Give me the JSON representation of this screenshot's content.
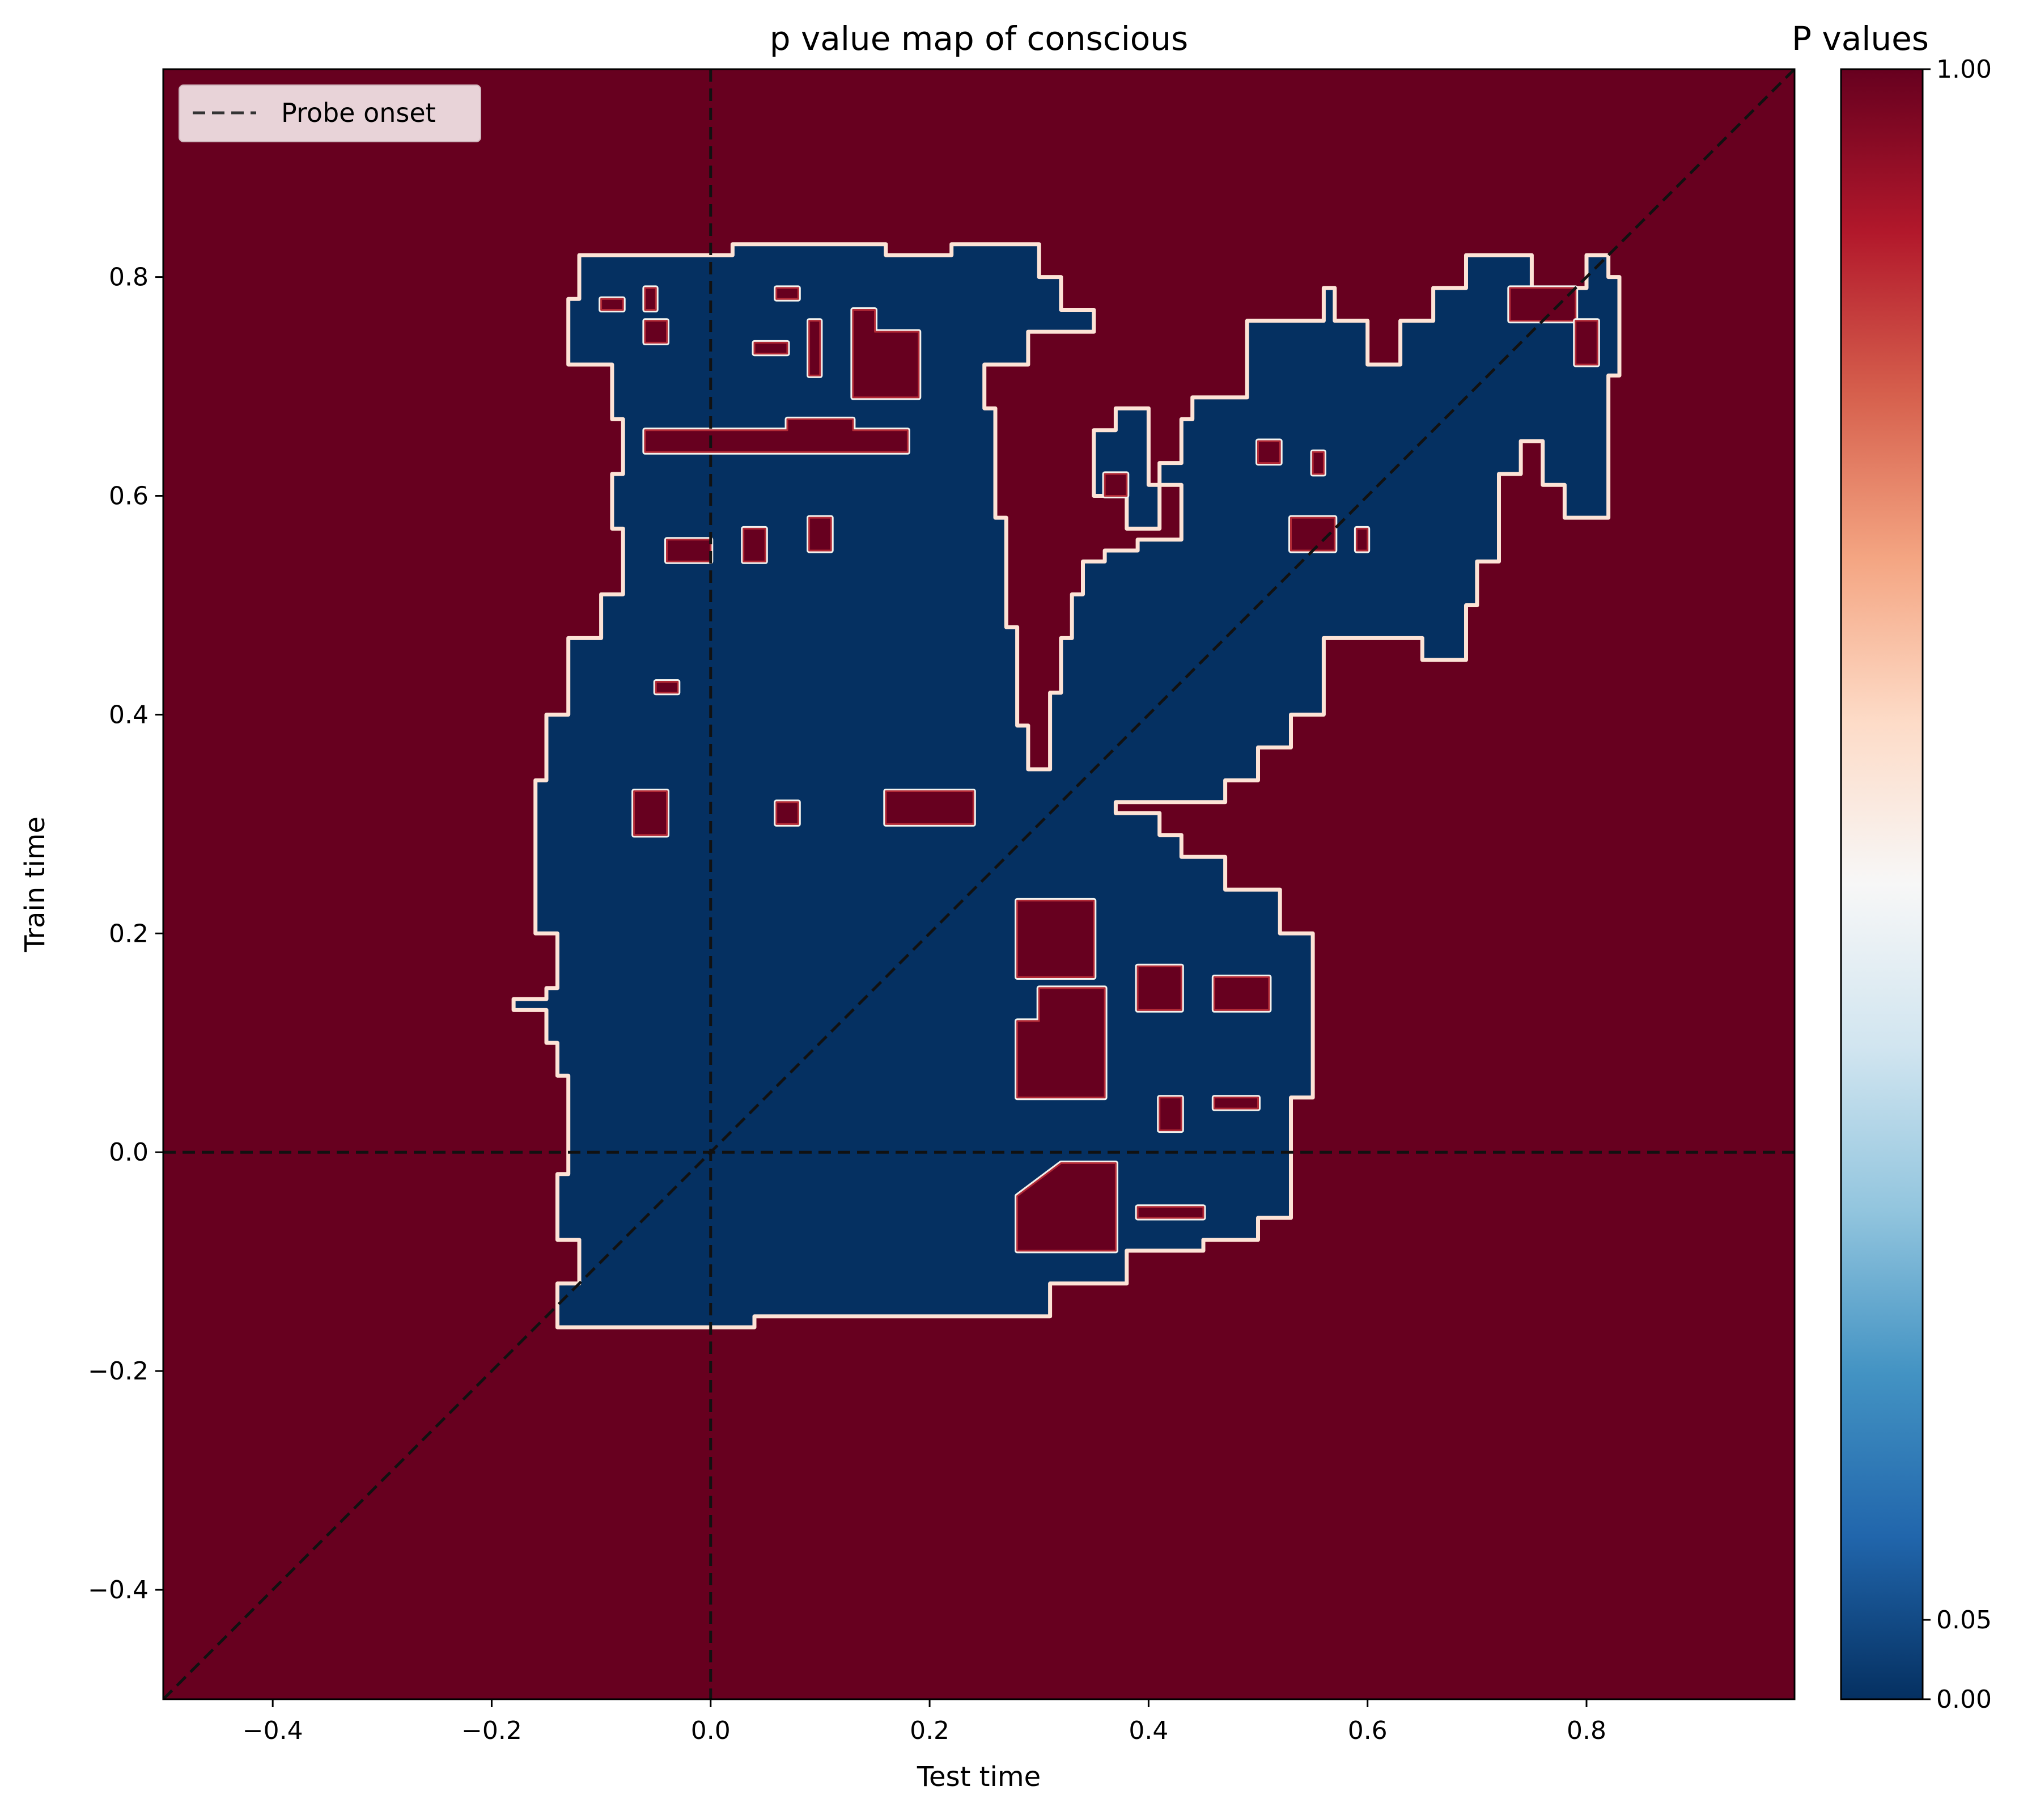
{
  "chart_data": {
    "type": "heatmap",
    "title": "p value map of  conscious",
    "xlabel": "Test time",
    "ylabel": "Train time",
    "xlim": [
      -0.5,
      0.99
    ],
    "ylim": [
      -0.5,
      0.99
    ],
    "xticks": [
      -0.4,
      -0.2,
      0.0,
      0.2,
      0.4,
      0.6,
      0.8
    ],
    "yticks": [
      -0.4,
      -0.2,
      0.0,
      0.2,
      0.4,
      0.6,
      0.8
    ],
    "xtick_labels": [
      "−0.4",
      "−0.2",
      "0.0",
      "0.2",
      "0.4",
      "0.6",
      "0.8"
    ],
    "ytick_labels": [
      "−0.4",
      "−0.2",
      "0.0",
      "0.2",
      "0.4",
      "0.6",
      "0.8"
    ],
    "background_value": 1.0,
    "significant_value": 0.0,
    "significant_region_outline": [
      [
        -0.14,
        -0.16
      ],
      [
        0.04,
        -0.16
      ],
      [
        0.04,
        -0.15
      ],
      [
        0.31,
        -0.15
      ],
      [
        0.31,
        -0.12
      ],
      [
        0.38,
        -0.12
      ],
      [
        0.38,
        -0.09
      ],
      [
        0.45,
        -0.09
      ],
      [
        0.45,
        -0.08
      ],
      [
        0.5,
        -0.08
      ],
      [
        0.5,
        -0.06
      ],
      [
        0.53,
        -0.06
      ],
      [
        0.53,
        0.05
      ],
      [
        0.55,
        0.05
      ],
      [
        0.55,
        0.2
      ],
      [
        0.52,
        0.2
      ],
      [
        0.52,
        0.24
      ],
      [
        0.47,
        0.24
      ],
      [
        0.47,
        0.27
      ],
      [
        0.43,
        0.27
      ],
      [
        0.43,
        0.29
      ],
      [
        0.41,
        0.29
      ],
      [
        0.41,
        0.31
      ],
      [
        0.37,
        0.31
      ],
      [
        0.37,
        0.32
      ],
      [
        0.47,
        0.32
      ],
      [
        0.47,
        0.34
      ],
      [
        0.5,
        0.34
      ],
      [
        0.5,
        0.37
      ],
      [
        0.53,
        0.37
      ],
      [
        0.53,
        0.4
      ],
      [
        0.56,
        0.4
      ],
      [
        0.56,
        0.47
      ],
      [
        0.65,
        0.47
      ],
      [
        0.65,
        0.45
      ],
      [
        0.69,
        0.45
      ],
      [
        0.69,
        0.5
      ],
      [
        0.7,
        0.5
      ],
      [
        0.7,
        0.54
      ],
      [
        0.72,
        0.54
      ],
      [
        0.72,
        0.62
      ],
      [
        0.74,
        0.62
      ],
      [
        0.74,
        0.65
      ],
      [
        0.76,
        0.65
      ],
      [
        0.76,
        0.61
      ],
      [
        0.78,
        0.61
      ],
      [
        0.78,
        0.58
      ],
      [
        0.82,
        0.58
      ],
      [
        0.82,
        0.71
      ],
      [
        0.83,
        0.71
      ],
      [
        0.83,
        0.8
      ],
      [
        0.82,
        0.8
      ],
      [
        0.82,
        0.82
      ],
      [
        0.8,
        0.82
      ],
      [
        0.8,
        0.79
      ],
      [
        0.75,
        0.79
      ],
      [
        0.75,
        0.82
      ],
      [
        0.69,
        0.82
      ],
      [
        0.69,
        0.79
      ],
      [
        0.66,
        0.79
      ],
      [
        0.66,
        0.76
      ],
      [
        0.63,
        0.76
      ],
      [
        0.63,
        0.72
      ],
      [
        0.6,
        0.72
      ],
      [
        0.6,
        0.76
      ],
      [
        0.57,
        0.76
      ],
      [
        0.57,
        0.79
      ],
      [
        0.56,
        0.79
      ],
      [
        0.56,
        0.76
      ],
      [
        0.49,
        0.76
      ],
      [
        0.49,
        0.69
      ],
      [
        0.44,
        0.69
      ],
      [
        0.44,
        0.67
      ],
      [
        0.43,
        0.67
      ],
      [
        0.43,
        0.63
      ],
      [
        0.41,
        0.63
      ],
      [
        0.41,
        0.57
      ],
      [
        0.38,
        0.57
      ],
      [
        0.38,
        0.6
      ],
      [
        0.35,
        0.6
      ],
      [
        0.35,
        0.66
      ],
      [
        0.37,
        0.66
      ],
      [
        0.37,
        0.68
      ],
      [
        0.4,
        0.68
      ],
      [
        0.4,
        0.61
      ],
      [
        0.43,
        0.61
      ],
      [
        0.43,
        0.56
      ],
      [
        0.39,
        0.56
      ],
      [
        0.39,
        0.55
      ],
      [
        0.36,
        0.55
      ],
      [
        0.36,
        0.54
      ],
      [
        0.34,
        0.54
      ],
      [
        0.34,
        0.51
      ],
      [
        0.33,
        0.51
      ],
      [
        0.33,
        0.47
      ],
      [
        0.32,
        0.47
      ],
      [
        0.32,
        0.42
      ],
      [
        0.31,
        0.42
      ],
      [
        0.31,
        0.35
      ],
      [
        0.29,
        0.35
      ],
      [
        0.29,
        0.39
      ],
      [
        0.28,
        0.39
      ],
      [
        0.28,
        0.48
      ],
      [
        0.27,
        0.48
      ],
      [
        0.27,
        0.58
      ],
      [
        0.26,
        0.58
      ],
      [
        0.26,
        0.68
      ],
      [
        0.25,
        0.68
      ],
      [
        0.25,
        0.72
      ],
      [
        0.29,
        0.72
      ],
      [
        0.29,
        0.75
      ],
      [
        0.35,
        0.75
      ],
      [
        0.35,
        0.77
      ],
      [
        0.32,
        0.77
      ],
      [
        0.32,
        0.8
      ],
      [
        0.3,
        0.8
      ],
      [
        0.3,
        0.83
      ],
      [
        0.22,
        0.83
      ],
      [
        0.22,
        0.82
      ],
      [
        0.16,
        0.82
      ],
      [
        0.16,
        0.83
      ],
      [
        0.02,
        0.83
      ],
      [
        0.02,
        0.82
      ],
      [
        -0.12,
        0.82
      ],
      [
        -0.12,
        0.78
      ],
      [
        -0.13,
        0.78
      ],
      [
        -0.13,
        0.72
      ],
      [
        -0.09,
        0.72
      ],
      [
        -0.09,
        0.67
      ],
      [
        -0.08,
        0.67
      ],
      [
        -0.08,
        0.62
      ],
      [
        -0.09,
        0.62
      ],
      [
        -0.09,
        0.57
      ],
      [
        -0.08,
        0.57
      ],
      [
        -0.08,
        0.51
      ],
      [
        -0.1,
        0.51
      ],
      [
        -0.1,
        0.47
      ],
      [
        -0.13,
        0.47
      ],
      [
        -0.13,
        0.4
      ],
      [
        -0.15,
        0.4
      ],
      [
        -0.15,
        0.34
      ],
      [
        -0.16,
        0.34
      ],
      [
        -0.16,
        0.2
      ],
      [
        -0.14,
        0.2
      ],
      [
        -0.14,
        0.15
      ],
      [
        -0.15,
        0.15
      ],
      [
        -0.15,
        0.14
      ],
      [
        -0.18,
        0.14
      ],
      [
        -0.18,
        0.13
      ],
      [
        -0.15,
        0.13
      ],
      [
        -0.15,
        0.1
      ],
      [
        -0.14,
        0.1
      ],
      [
        -0.14,
        0.07
      ],
      [
        -0.13,
        0.07
      ],
      [
        -0.13,
        -0.02
      ],
      [
        -0.14,
        -0.02
      ],
      [
        -0.14,
        -0.08
      ],
      [
        -0.12,
        -0.08
      ],
      [
        -0.12,
        -0.12
      ],
      [
        -0.14,
        -0.12
      ]
    ],
    "non_significant_holes": [
      [
        [
          -0.06,
          0.64
        ],
        [
          0.18,
          0.64
        ],
        [
          0.18,
          0.66
        ],
        [
          0.13,
          0.66
        ],
        [
          0.13,
          0.67
        ],
        [
          0.07,
          0.67
        ],
        [
          0.07,
          0.66
        ],
        [
          -0.06,
          0.66
        ]
      ],
      [
        [
          0.13,
          0.69
        ],
        [
          0.19,
          0.69
        ],
        [
          0.19,
          0.75
        ],
        [
          0.15,
          0.75
        ],
        [
          0.15,
          0.77
        ],
        [
          0.13,
          0.77
        ]
      ],
      [
        [
          0.09,
          0.71
        ],
        [
          0.1,
          0.71
        ],
        [
          0.1,
          0.76
        ],
        [
          0.09,
          0.76
        ]
      ],
      [
        [
          -0.1,
          0.77
        ],
        [
          -0.08,
          0.77
        ],
        [
          -0.08,
          0.78
        ],
        [
          -0.1,
          0.78
        ]
      ],
      [
        [
          -0.06,
          0.74
        ],
        [
          -0.04,
          0.74
        ],
        [
          -0.04,
          0.76
        ],
        [
          -0.06,
          0.76
        ]
      ],
      [
        [
          -0.06,
          0.77
        ],
        [
          -0.05,
          0.77
        ],
        [
          -0.05,
          0.79
        ],
        [
          -0.06,
          0.79
        ]
      ],
      [
        [
          0.06,
          0.78
        ],
        [
          0.08,
          0.78
        ],
        [
          0.08,
          0.79
        ],
        [
          0.06,
          0.79
        ]
      ],
      [
        [
          0.04,
          0.73
        ],
        [
          0.07,
          0.73
        ],
        [
          0.07,
          0.74
        ],
        [
          0.04,
          0.74
        ]
      ],
      [
        [
          0.03,
          0.54
        ],
        [
          0.05,
          0.54
        ],
        [
          0.05,
          0.57
        ],
        [
          0.03,
          0.57
        ]
      ],
      [
        [
          0.09,
          0.55
        ],
        [
          0.11,
          0.55
        ],
        [
          0.11,
          0.58
        ],
        [
          0.09,
          0.58
        ]
      ],
      [
        [
          -0.04,
          0.54
        ],
        [
          0.0,
          0.54
        ],
        [
          0.0,
          0.56
        ],
        [
          -0.04,
          0.56
        ]
      ],
      [
        [
          0.16,
          0.3
        ],
        [
          0.24,
          0.3
        ],
        [
          0.24,
          0.33
        ],
        [
          0.16,
          0.33
        ]
      ],
      [
        [
          0.06,
          0.3
        ],
        [
          0.08,
          0.3
        ],
        [
          0.08,
          0.32
        ],
        [
          0.06,
          0.32
        ]
      ],
      [
        [
          -0.07,
          0.29
        ],
        [
          -0.04,
          0.29
        ],
        [
          -0.04,
          0.33
        ],
        [
          -0.07,
          0.33
        ]
      ],
      [
        [
          -0.05,
          0.42
        ],
        [
          -0.03,
          0.42
        ],
        [
          -0.03,
          0.43
        ],
        [
          -0.05,
          0.43
        ]
      ],
      [
        [
          0.28,
          0.05
        ],
        [
          0.36,
          0.05
        ],
        [
          0.36,
          0.15
        ],
        [
          0.3,
          0.15
        ],
        [
          0.3,
          0.12
        ],
        [
          0.28,
          0.12
        ]
      ],
      [
        [
          0.28,
          0.16
        ],
        [
          0.35,
          0.16
        ],
        [
          0.35,
          0.23
        ],
        [
          0.28,
          0.23
        ]
      ],
      [
        [
          0.28,
          -0.09
        ],
        [
          0.37,
          -0.09
        ],
        [
          0.37,
          -0.01
        ],
        [
          0.32,
          -0.01
        ],
        [
          0.28,
          -0.04
        ]
      ],
      [
        [
          0.39,
          0.13
        ],
        [
          0.43,
          0.13
        ],
        [
          0.43,
          0.17
        ],
        [
          0.39,
          0.17
        ]
      ],
      [
        [
          0.46,
          0.13
        ],
        [
          0.51,
          0.13
        ],
        [
          0.51,
          0.16
        ],
        [
          0.46,
          0.16
        ]
      ],
      [
        [
          0.41,
          0.02
        ],
        [
          0.43,
          0.02
        ],
        [
          0.43,
          0.05
        ],
        [
          0.41,
          0.05
        ]
      ],
      [
        [
          0.46,
          0.04
        ],
        [
          0.5,
          0.04
        ],
        [
          0.5,
          0.05
        ],
        [
          0.46,
          0.05
        ]
      ],
      [
        [
          0.39,
          -0.06
        ],
        [
          0.45,
          -0.06
        ],
        [
          0.45,
          -0.05
        ],
        [
          0.39,
          -0.05
        ]
      ],
      [
        [
          0.36,
          0.6
        ],
        [
          0.38,
          0.6
        ],
        [
          0.38,
          0.62
        ],
        [
          0.36,
          0.62
        ]
      ],
      [
        [
          0.5,
          0.63
        ],
        [
          0.52,
          0.63
        ],
        [
          0.52,
          0.65
        ],
        [
          0.5,
          0.65
        ]
      ],
      [
        [
          0.55,
          0.62
        ],
        [
          0.56,
          0.62
        ],
        [
          0.56,
          0.64
        ],
        [
          0.55,
          0.64
        ]
      ],
      [
        [
          0.53,
          0.55
        ],
        [
          0.57,
          0.55
        ],
        [
          0.57,
          0.58
        ],
        [
          0.53,
          0.58
        ]
      ],
      [
        [
          0.59,
          0.55
        ],
        [
          0.6,
          0.55
        ],
        [
          0.6,
          0.57
        ],
        [
          0.59,
          0.57
        ]
      ],
      [
        [
          0.73,
          0.76
        ],
        [
          0.79,
          0.76
        ],
        [
          0.79,
          0.79
        ],
        [
          0.73,
          0.79
        ]
      ],
      [
        [
          0.79,
          0.72
        ],
        [
          0.81,
          0.72
        ],
        [
          0.81,
          0.76
        ],
        [
          0.79,
          0.76
        ]
      ]
    ],
    "diagonal_line": {
      "x": [
        -0.5,
        0.99
      ],
      "y": [
        -0.5,
        0.99
      ]
    },
    "vertical_line": {
      "x": 0.0
    },
    "horizontal_line": {
      "y": 0.0
    },
    "legend": {
      "entries": [
        "Probe onset"
      ],
      "position": "upper-left"
    },
    "colorbar": {
      "title": "P values",
      "cmap": "RdBu_r",
      "tick_values": [
        0.0,
        0.05,
        1.0
      ],
      "tick_labels": [
        "0.00",
        "0.05",
        "1.00"
      ],
      "colors": [
        "#053061",
        "#2166ac",
        "#4393c3",
        "#92c5de",
        "#d1e5f0",
        "#f7f7f7",
        "#fddbc7",
        "#f4a582",
        "#d6604d",
        "#b2182b",
        "#67001f"
      ]
    },
    "grid": false
  }
}
